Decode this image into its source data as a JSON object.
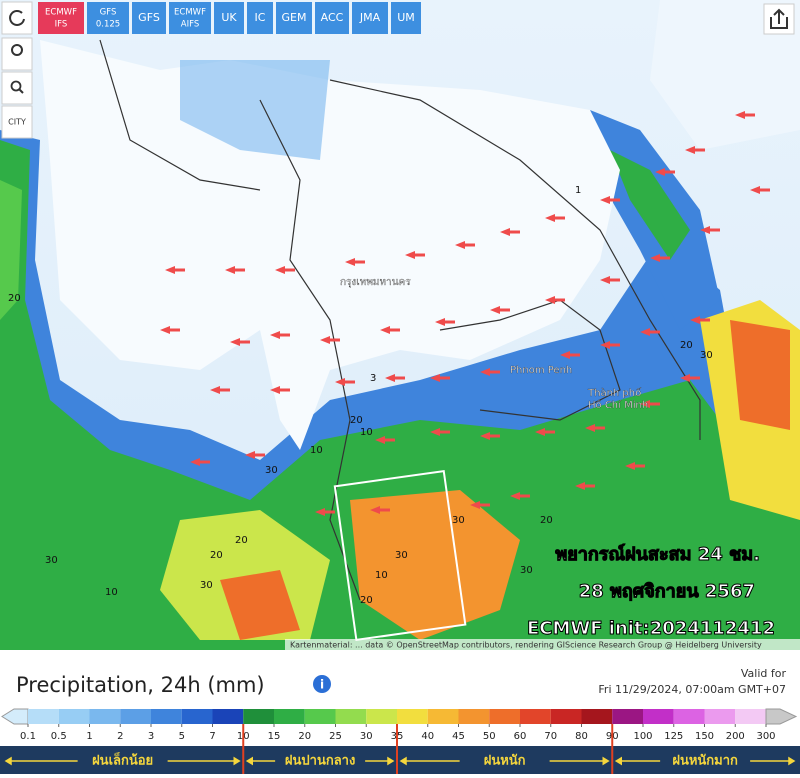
{
  "toolbar": {
    "models": [
      [
        "ECMWF",
        "IFS"
      ],
      [
        "GFS",
        "0.125"
      ],
      [
        "GFS"
      ],
      [
        "ECMWF",
        "AIFS"
      ],
      [
        "UK"
      ],
      [
        "IC"
      ],
      [
        "GEM"
      ],
      [
        "ACC"
      ],
      [
        "JMA"
      ],
      [
        "UM"
      ]
    ]
  },
  "tools": {
    "city_label": "CITY"
  },
  "map": {
    "places": [
      "กรุงเทพมหานคร",
      "Phnom Penh",
      "Thành phố",
      "Hồ Chí Minh"
    ],
    "overlay": [
      "พยากรณ์ฝนสะสม 24 ชม.",
      "28 พฤศจิกายน 2567",
      "ECMWF init:2024112412"
    ],
    "contour_labels": [
      20,
      30,
      20,
      10,
      30,
      20,
      30,
      10,
      20,
      30,
      30,
      20,
      10,
      20,
      30,
      1,
      3,
      10,
      30,
      20
    ],
    "attribution": "Kartenmaterial: ... data © OpenStreetMap contributors, rendering GIScience Research Group @ Heidelberg University"
  },
  "legend": {
    "title": "Precipitation, 24h (mm)",
    "valid_label": "Valid for",
    "valid_time": "Fri 11/29/2024, 07:00am GMT+07",
    "ticks": [
      0.1,
      0.5,
      1,
      2,
      3,
      5,
      7,
      10,
      15,
      20,
      25,
      30,
      35,
      40,
      45,
      50,
      60,
      70,
      80,
      90,
      100,
      125,
      150,
      200,
      300
    ],
    "colors": [
      "#d4ecfb",
      "#b5ddf8",
      "#97cdf4",
      "#7ab8ee",
      "#5c9fe6",
      "#3f84dc",
      "#2865cf",
      "#1a44b8",
      "#1f8f3a",
      "#2fae45",
      "#56c94c",
      "#93dc4e",
      "#cbe64b",
      "#f2de3e",
      "#f6b934",
      "#f3942f",
      "#ee6e2a",
      "#e2452a",
      "#c92624",
      "#a5161d",
      "#9b1683",
      "#c22fc8",
      "#dc63e3",
      "#eb9aee",
      "#f3c9f4",
      "#c8c8c8"
    ],
    "categories": [
      "ฝนเล็กน้อย",
      "ฝนปานกลาง",
      "ฝนหนัก",
      "ฝนหนักมาก"
    ]
  }
}
